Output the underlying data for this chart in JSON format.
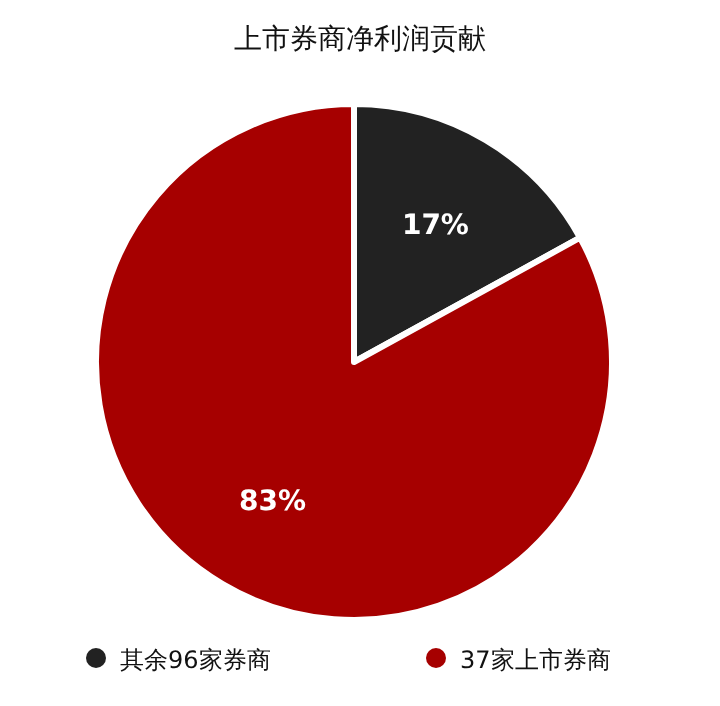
{
  "chart_data": {
    "type": "pie",
    "title": "上市券商净利润贡献",
    "categories": [
      "其余96家券商",
      "37家上市券商"
    ],
    "values": [
      17,
      83
    ],
    "colors": [
      "#222222",
      "#a60000"
    ],
    "value_labels": [
      "17%",
      "83%"
    ],
    "legend": "bottom"
  }
}
